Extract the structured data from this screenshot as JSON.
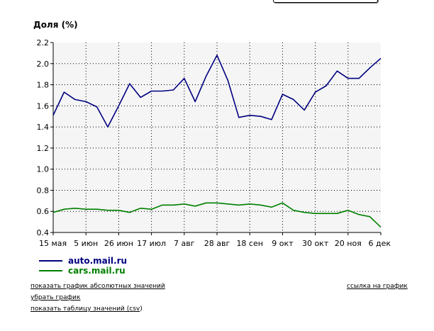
{
  "header": {
    "title": "Доля (%)"
  },
  "chart_data": {
    "type": "line",
    "ylim": [
      0.4,
      2.2
    ],
    "y_ticks": [
      "0.4",
      "0.6",
      "0.8",
      "1.0",
      "1.2",
      "1.4",
      "1.6",
      "1.8",
      "2.0",
      "2.2"
    ],
    "x_ticks": [
      "15 мая",
      "5 июн",
      "26 июн",
      "17 июл",
      "7 авг",
      "28 авг",
      "18 сен",
      "9 окт",
      "30 окт",
      "20 ноя",
      "6 дек"
    ],
    "grid": true,
    "legend_position": "bottom-left",
    "series": [
      {
        "name": "auto.mail.ru",
        "color": "#000080",
        "values": [
          1.51,
          1.73,
          1.66,
          1.64,
          1.59,
          1.4,
          1.6,
          1.81,
          1.68,
          1.74,
          1.74,
          1.75,
          1.86,
          1.64,
          1.88,
          2.08,
          1.84,
          1.49,
          1.51,
          1.5,
          1.47,
          1.71,
          1.66,
          1.56,
          1.73,
          1.79,
          1.93,
          1.86,
          1.86,
          1.96,
          2.05
        ]
      },
      {
        "name": "cars.mail.ru",
        "color": "#008000",
        "values": [
          0.59,
          0.62,
          0.63,
          0.62,
          0.62,
          0.61,
          0.61,
          0.59,
          0.63,
          0.62,
          0.66,
          0.66,
          0.67,
          0.65,
          0.68,
          0.68,
          0.67,
          0.66,
          0.67,
          0.66,
          0.64,
          0.68,
          0.61,
          0.59,
          0.58,
          0.58,
          0.58,
          0.61,
          0.57,
          0.55,
          0.45
        ]
      }
    ]
  },
  "links": {
    "absolute": "показать график абсолютных значений",
    "remove": "убрать график",
    "table_prefix": "показать таблицу значений (",
    "csv": "csv",
    "table_suffix": ")",
    "chart_link": "ссылка на график"
  }
}
